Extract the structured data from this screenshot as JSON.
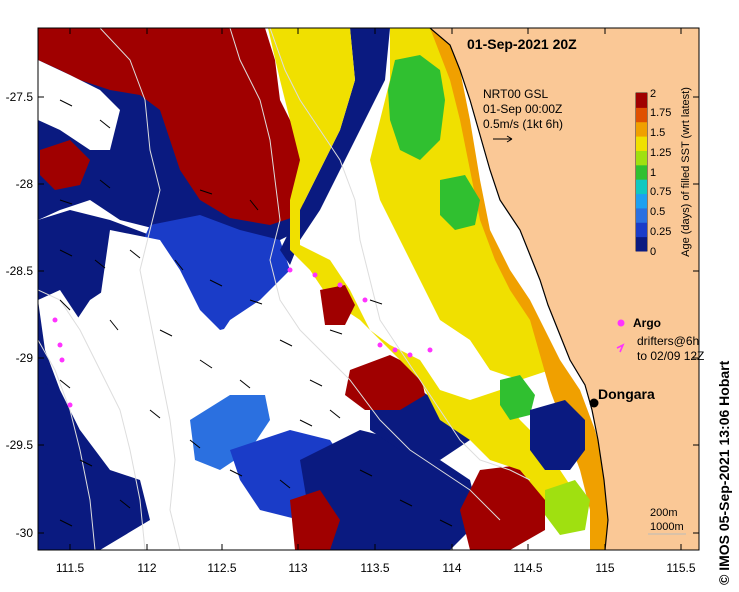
{
  "title": "01-Sep-2021 20Z",
  "velocity_legend": {
    "line1": "NRT00 GSL",
    "line2": "01-Sep 00:00Z",
    "line3": "0.5m/s (1kt 6h)"
  },
  "colorbar": {
    "label": "Age (days) of filled SST (wrt latest)",
    "ticks": [
      "2",
      "1.75",
      "1.5",
      "1.25",
      "1",
      "0.75",
      "0.5",
      "0.25",
      "0"
    ],
    "min": 0,
    "max": 2,
    "colors": [
      "#0a1a80",
      "#1a3cc8",
      "#2b70e0",
      "#1ea0f0",
      "#10c8c0",
      "#30c030",
      "#a0e010",
      "#f0e000",
      "#f0a000",
      "#e05000",
      "#a00000"
    ]
  },
  "argo_legend": {
    "argo_label": "Argo",
    "drifters_line1": "drifters@6h",
    "drifters_line2": "to 02/09 12Z",
    "marker_color": "#ff33ff"
  },
  "place": {
    "name": "Dongara",
    "lon": 114.93,
    "lat": -29.25
  },
  "depth_legend": {
    "line1": "200m",
    "line2": "1000m"
  },
  "axes": {
    "x_ticks": [
      "111.5",
      "112",
      "112.5",
      "113",
      "113.5",
      "114",
      "114.5",
      "115",
      "115.5"
    ],
    "y_ticks": [
      "-27.5",
      "-28",
      "-28.5",
      "-29",
      "-29.5",
      "-30"
    ],
    "lon_range": [
      111.3,
      115.6
    ],
    "lat_range": [
      -30.1,
      -27.1
    ]
  },
  "footer": "© IMOS 05-Sep-2021 13:06 Hobart",
  "colors": {
    "land": "#fac896",
    "no_data": "#ffffff",
    "coast": "#000000"
  }
}
